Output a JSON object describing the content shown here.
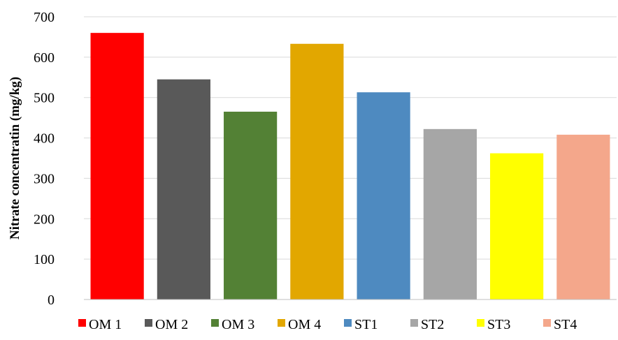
{
  "chart_data": {
    "type": "bar",
    "title": "",
    "xlabel": "",
    "ylabel": "Nitrate concentratin (mg/kg)",
    "ylim": [
      0,
      700
    ],
    "yticks": [
      0,
      100,
      200,
      300,
      400,
      500,
      600,
      700
    ],
    "grid": true,
    "legend_position": "bottom",
    "categories": [
      "OM 1",
      "OM 2",
      "OM 3",
      "OM 4",
      "ST1",
      "ST2",
      "ST3",
      "ST4"
    ],
    "series": [
      {
        "name": "",
        "values": [
          660,
          545,
          465,
          633,
          513,
          422,
          362,
          408
        ],
        "colors": [
          "#ff0000",
          "#595959",
          "#538135",
          "#e2a700",
          "#4e8ac0",
          "#a6a6a6",
          "#ffff00",
          "#f4a78b"
        ]
      }
    ]
  }
}
